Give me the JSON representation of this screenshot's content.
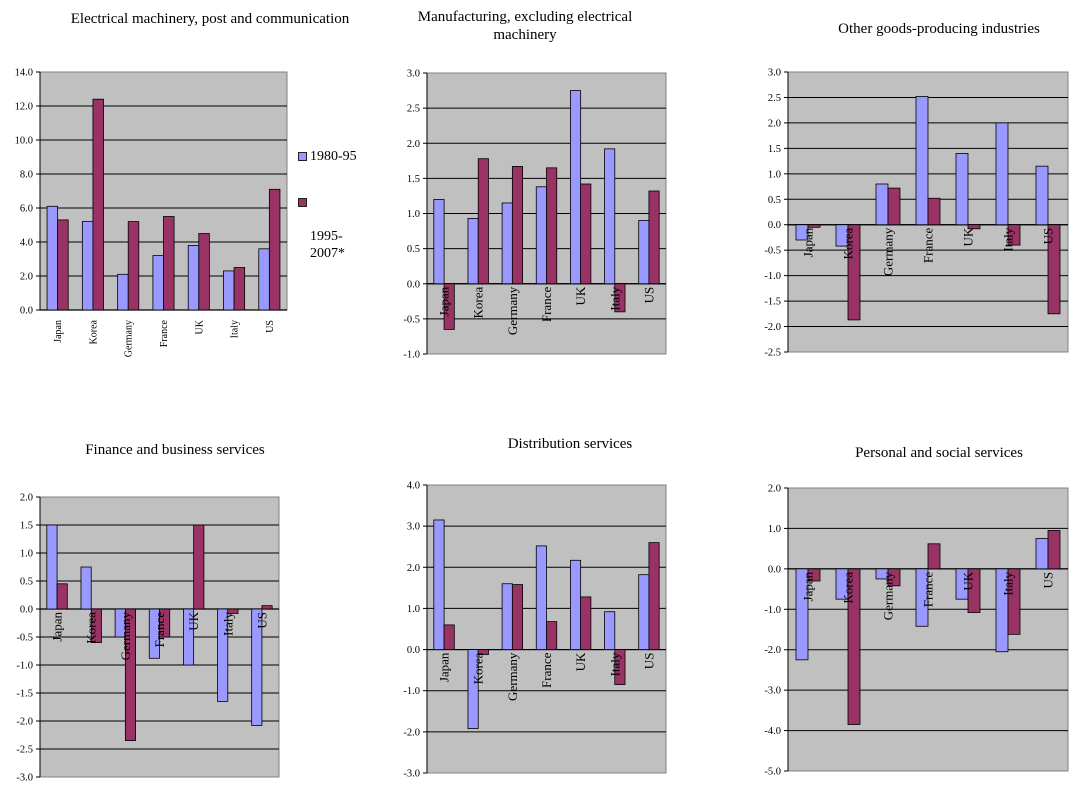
{
  "colors": {
    "series1": "#9999ff",
    "series2": "#993366",
    "plot_bg": "#c0c0c0"
  },
  "legend": {
    "item1": "1980-95",
    "item2": "1995-\n2007*"
  },
  "chart_data": [
    {
      "type": "bar",
      "title": "Electrical machinery, post and communication",
      "categories": [
        "Japan",
        "Korea",
        "Germany",
        "France",
        "UK",
        "Italy",
        "US"
      ],
      "series": [
        {
          "name": "1980-95",
          "values": [
            6.1,
            5.2,
            2.1,
            3.2,
            3.8,
            2.3,
            3.6
          ]
        },
        {
          "name": "1995-2007*",
          "values": [
            5.3,
            12.4,
            5.2,
            5.5,
            4.5,
            2.5,
            7.1
          ]
        }
      ],
      "ylim": [
        0,
        14
      ],
      "ytick_step": 2,
      "ytick_decimals": 1,
      "grid": true,
      "legend": "right"
    },
    {
      "type": "bar",
      "title": "Manufacturing, excluding electrical machinery",
      "categories": [
        "Japan",
        "Korea",
        "Germany",
        "France",
        "UK",
        "Italy",
        "US"
      ],
      "series": [
        {
          "name": "1980-95",
          "values": [
            1.2,
            0.93,
            1.15,
            1.38,
            2.75,
            1.92,
            0.9
          ]
        },
        {
          "name": "1995-2007*",
          "values": [
            -0.65,
            1.78,
            1.67,
            1.65,
            1.42,
            -0.4,
            1.32
          ]
        }
      ],
      "ylim": [
        -1,
        3
      ],
      "ytick_step": 0.5,
      "ytick_decimals": 1,
      "grid": true
    },
    {
      "type": "bar",
      "title": "Other goods-producing industries",
      "categories": [
        "Japan",
        "Korea",
        "Germany",
        "France",
        "UK",
        "Italy",
        "US"
      ],
      "series": [
        {
          "name": "1980-95",
          "values": [
            -0.3,
            -0.42,
            0.8,
            2.52,
            1.4,
            2.0,
            1.15
          ]
        },
        {
          "name": "1995-2007*",
          "values": [
            -0.05,
            -1.87,
            0.72,
            0.52,
            -0.08,
            -0.4,
            -1.75
          ]
        }
      ],
      "ylim": [
        -2.5,
        3
      ],
      "ytick_step": 0.5,
      "ytick_decimals": 1,
      "grid": true
    },
    {
      "type": "bar",
      "title": "Finance and business services",
      "categories": [
        "Japan",
        "Korea",
        "Germany",
        "France",
        "UK",
        "Italy",
        "US"
      ],
      "series": [
        {
          "name": "1980-95",
          "values": [
            1.5,
            0.75,
            -0.5,
            -0.88,
            -1.0,
            -1.65,
            -2.08
          ]
        },
        {
          "name": "1995-2007*",
          "values": [
            0.45,
            -0.6,
            -2.35,
            -0.5,
            1.5,
            -0.08,
            0.06
          ]
        }
      ],
      "ylim": [
        -3,
        2
      ],
      "ytick_step": 0.5,
      "ytick_decimals": 1,
      "grid": true
    },
    {
      "type": "bar",
      "title": "Distribution services",
      "categories": [
        "Japan",
        "Korea",
        "Germany",
        "France",
        "UK",
        "Italy",
        "US"
      ],
      "series": [
        {
          "name": "1980-95",
          "values": [
            3.15,
            -1.92,
            1.6,
            2.52,
            2.17,
            0.92,
            1.82
          ]
        },
        {
          "name": "1995-2007*",
          "values": [
            0.6,
            -0.12,
            1.58,
            0.68,
            1.28,
            -0.85,
            2.6
          ]
        }
      ],
      "ylim": [
        -3,
        4
      ],
      "ytick_step": 1,
      "ytick_decimals": 1,
      "grid": true
    },
    {
      "type": "bar",
      "title": "Personal and social services",
      "categories": [
        "Japan",
        "Korea",
        "Germany",
        "France",
        "UK",
        "Italy",
        "US"
      ],
      "series": [
        {
          "name": "1980-95",
          "values": [
            -2.25,
            -0.75,
            -0.25,
            -1.42,
            -0.75,
            -2.05,
            0.75
          ]
        },
        {
          "name": "1995-2007*",
          "values": [
            -0.3,
            -3.85,
            -0.42,
            0.62,
            -1.08,
            -1.62,
            0.95
          ]
        }
      ],
      "ylim": [
        -5,
        2
      ],
      "ytick_step": 1,
      "ytick_decimals": 1,
      "grid": true
    }
  ]
}
